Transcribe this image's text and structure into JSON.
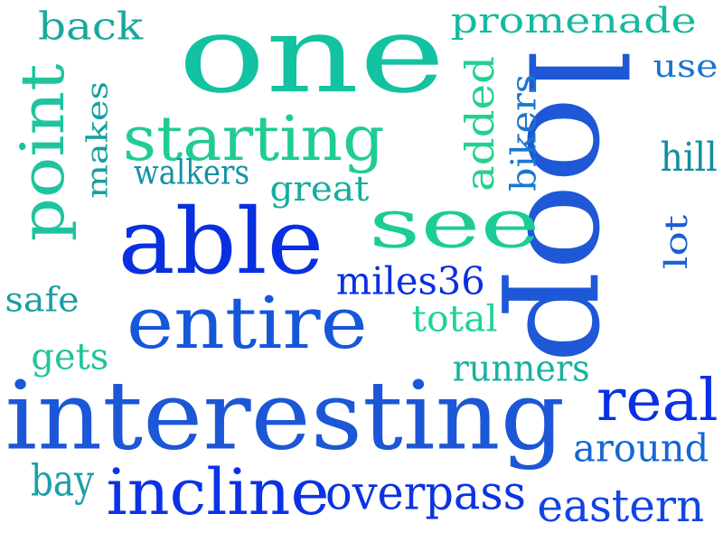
{
  "words": [
    {
      "id": "one",
      "text": "one",
      "color": "#12c2a0"
    },
    {
      "id": "loop",
      "text": "loop",
      "color": "#1f58d6",
      "rotate": 90
    },
    {
      "id": "interesting",
      "text": "interesting",
      "color": "#1b57d6"
    },
    {
      "id": "able",
      "text": "able",
      "color": "#0a2fe0"
    },
    {
      "id": "see",
      "text": "see",
      "color": "#1ccc96"
    },
    {
      "id": "starting",
      "text": "starting",
      "color": "#20cb96"
    },
    {
      "id": "entire",
      "text": "entire",
      "color": "#1557d9"
    },
    {
      "id": "incline",
      "text": "incline",
      "color": "#0b32e6"
    },
    {
      "id": "point",
      "text": "point",
      "color": "#1fc49f",
      "rotate": -90
    },
    {
      "id": "real",
      "text": "real",
      "color": "#0a30e6"
    },
    {
      "id": "back",
      "text": "back",
      "color": "#17a99c"
    },
    {
      "id": "promenade",
      "text": "promenade",
      "color": "#17b99f"
    },
    {
      "id": "added",
      "text": "added",
      "color": "#25d08f",
      "rotate": -90
    },
    {
      "id": "bikers",
      "text": "bikers",
      "color": "#1a77cf",
      "rotate": -90
    },
    {
      "id": "use",
      "text": "use",
      "color": "#1a73cf"
    },
    {
      "id": "hill",
      "text": "hill",
      "color": "#168e9e"
    },
    {
      "id": "makes",
      "text": "makes",
      "color": "#15a09e",
      "rotate": -90
    },
    {
      "id": "walkers",
      "text": "walkers",
      "color": "#1691a5"
    },
    {
      "id": "great",
      "text": "great",
      "color": "#14ae9d"
    },
    {
      "id": "lot",
      "text": "lot",
      "color": "#1a5fce",
      "rotate": -90
    },
    {
      "id": "miles36",
      "text": "miles36",
      "color": "#0a2fe0"
    },
    {
      "id": "safe",
      "text": "safe",
      "color": "#1a9ea1"
    },
    {
      "id": "total",
      "text": "total",
      "color": "#1fd39a"
    },
    {
      "id": "gets",
      "text": "gets",
      "color": "#25c39a"
    },
    {
      "id": "runners",
      "text": "runners",
      "color": "#17b2a0"
    },
    {
      "id": "around",
      "text": "around",
      "color": "#1567d3"
    },
    {
      "id": "overpass",
      "text": "overpass",
      "color": "#0b33e3"
    },
    {
      "id": "bay",
      "text": "bay",
      "color": "#1a9fa6"
    },
    {
      "id": "eastern",
      "text": "eastern",
      "color": "#1344e3"
    }
  ]
}
